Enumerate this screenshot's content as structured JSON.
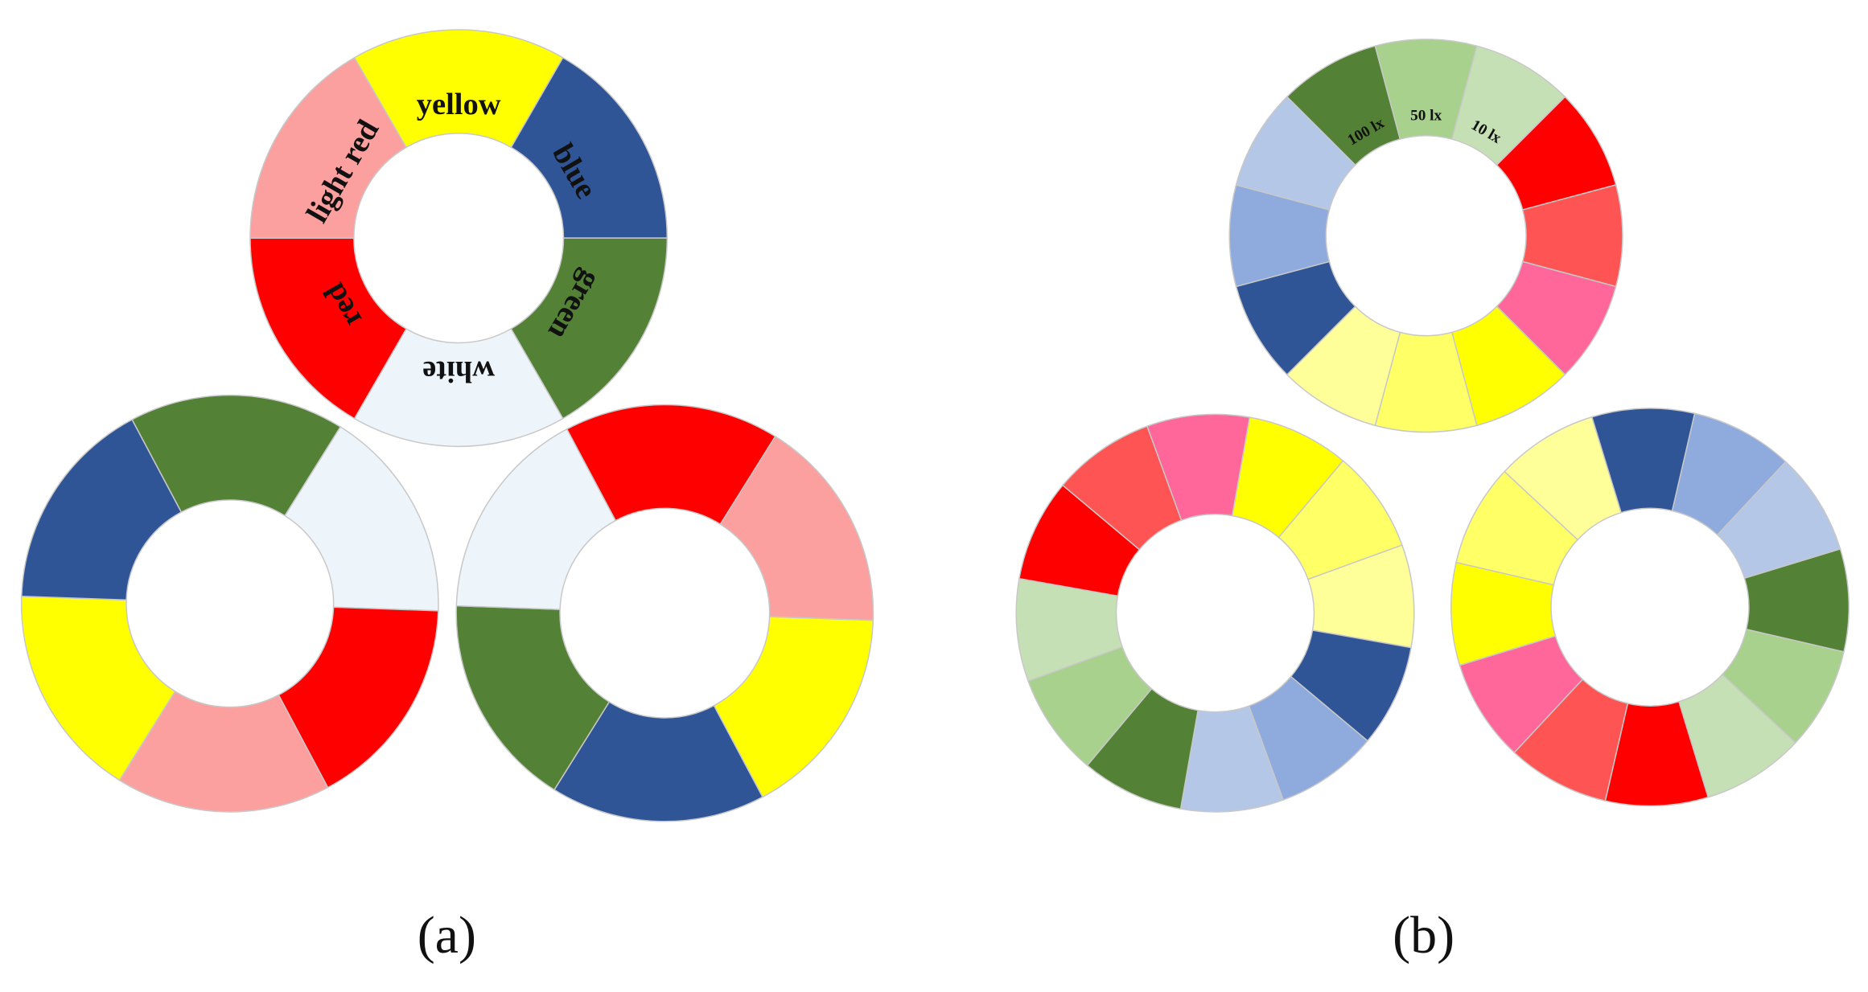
{
  "panels": [
    {
      "label": "(a)",
      "wheels": [
        {
          "segments": [
            {
              "color": "#ffff00",
              "label": "yellow"
            },
            {
              "color": "#2f5597",
              "label": "blue"
            },
            {
              "color": "#538135",
              "label": "green"
            },
            {
              "color": "#edf4fa",
              "label": "white"
            },
            {
              "color": "#ff0000",
              "label": "red"
            },
            {
              "color": "#fc9f9f",
              "label": "light red"
            }
          ]
        },
        {
          "segments": [
            {
              "color": "#538135"
            },
            {
              "color": "#edf4fa"
            },
            {
              "color": "#ff0000"
            },
            {
              "color": "#fc9f9f"
            },
            {
              "color": "#ffff00"
            },
            {
              "color": "#2f5597"
            }
          ]
        },
        {
          "segments": [
            {
              "color": "#ff0000"
            },
            {
              "color": "#fc9f9f"
            },
            {
              "color": "#ffff00"
            },
            {
              "color": "#2f5597"
            },
            {
              "color": "#538135"
            },
            {
              "color": "#edf4fa"
            }
          ]
        }
      ]
    },
    {
      "label": "(b)",
      "wheels": [
        {
          "segments": [
            {
              "color": "#538135",
              "label": "100 lx"
            },
            {
              "color": "#a9d18e",
              "label": "50 lx"
            },
            {
              "color": "#c5e0b4",
              "label": "10 lx"
            },
            {
              "color": "#ff0000"
            },
            {
              "color": "#ff5454"
            },
            {
              "color": "#ff6699"
            },
            {
              "color": "#ffff00"
            },
            {
              "color": "#ffff66"
            },
            {
              "color": "#ffff99"
            },
            {
              "color": "#2f5597"
            },
            {
              "color": "#8faadc"
            },
            {
              "color": "#b4c7e7"
            }
          ]
        },
        {
          "segments": [
            {
              "color": "#ff6699"
            },
            {
              "color": "#ffff00"
            },
            {
              "color": "#ffff66"
            },
            {
              "color": "#ffff99"
            },
            {
              "color": "#2f5597"
            },
            {
              "color": "#8faadc"
            },
            {
              "color": "#b4c7e7"
            },
            {
              "color": "#538135"
            },
            {
              "color": "#a9d18e"
            },
            {
              "color": "#c5e0b4"
            },
            {
              "color": "#ff0000"
            },
            {
              "color": "#ff5454"
            }
          ]
        },
        {
          "segments": [
            {
              "color": "#2f5597"
            },
            {
              "color": "#8faadc"
            },
            {
              "color": "#b4c7e7"
            },
            {
              "color": "#538135"
            },
            {
              "color": "#a9d18e"
            },
            {
              "color": "#c5e0b4"
            },
            {
              "color": "#ff0000"
            },
            {
              "color": "#ff5454"
            },
            {
              "color": "#ff6699"
            },
            {
              "color": "#ffff00"
            },
            {
              "color": "#ffff66"
            },
            {
              "color": "#ffff99"
            }
          ]
        }
      ]
    }
  ]
}
